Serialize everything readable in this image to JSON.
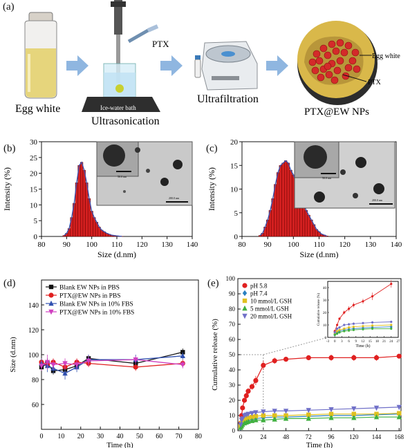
{
  "panel_a": {
    "label": "(a)",
    "egg_white_label": "Egg white",
    "ptx_label": "PTX",
    "bath_label": "Ice-water bath",
    "ultrasonication_label": "Ultrasonication",
    "ultrafiltration_label": "Ultrafiltration",
    "np_label": "PTX@EW NPs",
    "np_egg_white_label": "Egg white",
    "np_ptx_label": "PTX"
  },
  "chart_data": [
    {
      "id": "b",
      "type": "bar",
      "panel_label": "(b)",
      "xlabel": "Size (d.nm)",
      "ylabel": "Intensity (%)",
      "xlim": [
        80,
        140
      ],
      "ylim": [
        0,
        30
      ],
      "xticks": [
        "80",
        "90",
        "100",
        "110",
        "120",
        "130",
        "140"
      ],
      "yticks": [
        "0",
        "5",
        "10",
        "15",
        "20",
        "25",
        "30"
      ],
      "bin_width": 1,
      "bin_centers": [
        89,
        90,
        91,
        92,
        93,
        94,
        95,
        96,
        97,
        98,
        99,
        100,
        101,
        102,
        103,
        104,
        105,
        106,
        107,
        108,
        109,
        110,
        111,
        112
      ],
      "values": [
        0.3,
        1,
        2.5,
        6,
        10.5,
        17,
        22.5,
        23.5,
        21,
        17,
        12,
        8,
        6,
        4.5,
        3,
        2,
        1.5,
        1,
        0.7,
        0.4,
        0.3,
        0.2,
        0.1,
        0.05
      ],
      "inset_scale_large": "50.0 nm",
      "inset_scale_small": "200.0 nm"
    },
    {
      "id": "c",
      "type": "bar",
      "panel_label": "(c)",
      "xlabel": "Size (d.nm)",
      "ylabel": "Intensity (%)",
      "xlim": [
        80,
        140
      ],
      "ylim": [
        0,
        20
      ],
      "xticks": [
        "80",
        "90",
        "100",
        "110",
        "120",
        "130",
        "140"
      ],
      "yticks": [
        "0",
        "5",
        "10",
        "15",
        "20"
      ],
      "bin_width": 1,
      "bin_centers": [
        87,
        88,
        89,
        90,
        91,
        92,
        93,
        94,
        95,
        96,
        97,
        98,
        99,
        100,
        101,
        102,
        103,
        104,
        105,
        106,
        107,
        108,
        109,
        110,
        111,
        112,
        113
      ],
      "values": [
        0.2,
        0.7,
        2,
        3.5,
        5.5,
        8,
        11,
        13.5,
        15,
        15.5,
        16,
        15.5,
        14,
        13,
        11.5,
        10,
        8.5,
        7,
        5.5,
        4.5,
        3.5,
        2.5,
        1.5,
        1,
        0.5,
        0.3,
        0.1
      ],
      "inset_scale_large": "50.0 nm",
      "inset_scale_small": "200.0 nm"
    },
    {
      "id": "d",
      "type": "line",
      "panel_label": "(d)",
      "xlabel": "Time (h)",
      "ylabel": "Size (d.nm)",
      "xlim": [
        0,
        80
      ],
      "ylim": [
        40,
        160
      ],
      "xticks": [
        "0",
        "10",
        "20",
        "30",
        "40",
        "50",
        "60",
        "70",
        "80"
      ],
      "yticks": [
        "60",
        "80",
        "100",
        "120",
        "140"
      ],
      "legend_position": "top-left",
      "x": [
        0,
        3,
        6,
        12,
        18,
        24,
        48,
        72
      ],
      "series": [
        {
          "name": "Blank EW NPs in PBS",
          "color": "#111111",
          "marker": "square",
          "values": [
            90,
            93,
            87,
            88,
            91,
            97,
            93,
            102
          ],
          "errors": [
            3,
            4,
            3,
            4,
            3,
            3,
            4,
            3
          ]
        },
        {
          "name": "PTX@EW NPs in PBS",
          "color": "#e02020",
          "marker": "circle",
          "values": [
            94,
            92,
            94,
            90,
            94,
            93,
            90,
            93
          ],
          "errors": [
            3,
            3,
            3,
            3,
            3,
            3,
            3,
            3
          ]
        },
        {
          "name": "Blank EW NPs in 10% FBS",
          "color": "#3050b0",
          "marker": "triangle",
          "values": [
            93,
            91,
            89,
            85,
            90,
            96,
            96,
            99
          ],
          "errors": [
            4,
            5,
            4,
            5,
            4,
            4,
            4,
            3
          ]
        },
        {
          "name": "PTX@EW NPs in 10% FBS",
          "color": "#d040c0",
          "marker": "tri-down",
          "values": [
            91,
            94,
            92,
            93,
            92,
            95,
            96,
            92
          ],
          "errors": [
            4,
            6,
            4,
            4,
            4,
            4,
            3,
            3
          ]
        }
      ]
    },
    {
      "id": "e",
      "type": "line",
      "panel_label": "(e)",
      "xlabel": "Time (h)",
      "ylabel": "Cumulative release (%)",
      "xlim": [
        -3,
        170
      ],
      "ylim": [
        0,
        100
      ],
      "xticks": [
        "0",
        "24",
        "48",
        "72",
        "96",
        "120",
        "144",
        "168"
      ],
      "yticks": [
        "0",
        "10",
        "20",
        "30",
        "40",
        "50",
        "60",
        "70",
        "80",
        "90",
        "100"
      ],
      "legend_position": "top-left",
      "x": [
        0,
        1,
        2,
        4,
        6,
        8,
        12,
        16,
        24,
        36,
        48,
        72,
        96,
        120,
        144,
        168
      ],
      "series": [
        {
          "name": "pH 5.8",
          "color": "#e02020",
          "marker": "circle",
          "values": [
            5,
            10,
            15,
            20,
            23,
            26,
            29,
            33,
            43,
            46,
            47,
            48,
            48,
            48,
            48,
            49
          ],
          "errors": [
            1,
            1,
            1,
            1.5,
            2,
            2,
            2,
            3,
            3,
            2,
            1.5,
            1.5,
            2,
            2,
            2,
            1.5
          ]
        },
        {
          "name": "pH 7.4",
          "color": "#2a80c0",
          "marker": "diamond",
          "values": [
            2,
            4,
            5,
            6,
            6.5,
            7,
            7.5,
            8,
            8.5,
            9,
            9,
            9.5,
            10,
            10,
            10.5,
            11
          ],
          "errors": [
            1,
            1,
            1,
            1,
            1,
            1,
            1,
            1,
            1,
            1,
            1,
            1,
            1,
            1,
            1,
            1
          ]
        },
        {
          "name": "10 mmol/L GSH",
          "color": "#e0c020",
          "marker": "square",
          "values": [
            3,
            5,
            6,
            7,
            8,
            8.5,
            9,
            9.5,
            10,
            10,
            10,
            10.5,
            11,
            11,
            11,
            11.5
          ],
          "errors": [
            1,
            1,
            1,
            1,
            1,
            1,
            1,
            1,
            1,
            1,
            1,
            1,
            1,
            1,
            1,
            1
          ]
        },
        {
          "name": "5 mmol/L GSH",
          "color": "#40b040",
          "marker": "triangle",
          "values": [
            2,
            3,
            4,
            5,
            5.5,
            6,
            6.5,
            7,
            7,
            7.5,
            8,
            8,
            8.5,
            8.5,
            9,
            9
          ],
          "errors": [
            1,
            1,
            1,
            1,
            1,
            1,
            1,
            1,
            1,
            1,
            1,
            1,
            1,
            1,
            1,
            1
          ]
        },
        {
          "name": "20 mmol/L GSH",
          "color": "#7070c8",
          "marker": "tri-down",
          "values": [
            4,
            7,
            8,
            10,
            10.5,
            11,
            11.5,
            12,
            12.5,
            13,
            13,
            13.5,
            14,
            14.5,
            15,
            15.5
          ],
          "errors": [
            1,
            1,
            1,
            1,
            1,
            1,
            1,
            1,
            1,
            1,
            1,
            1,
            1,
            1,
            1,
            1.5
          ]
        }
      ],
      "inset": {
        "xlabel": "Time (h)",
        "ylabel": "Cumulative release (%)",
        "xlim": [
          -3,
          27
        ],
        "ylim": [
          0,
          45
        ],
        "xticks": [
          "-3",
          "0",
          "3",
          "6",
          "9",
          "12",
          "15",
          "18",
          "21",
          "24",
          "27"
        ],
        "yticks": [
          "0",
          "10",
          "20",
          "30",
          "40"
        ]
      }
    }
  ]
}
